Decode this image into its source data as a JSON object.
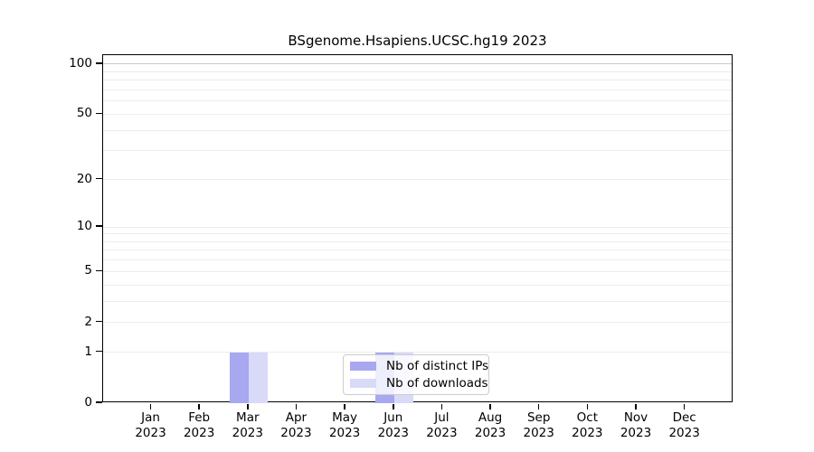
{
  "chart_data": {
    "type": "bar",
    "title": "BSgenome.Hsapiens.UCSC.hg19 2023",
    "categories": [
      "Jan",
      "Feb",
      "Mar",
      "Apr",
      "May",
      "Jun",
      "Jul",
      "Aug",
      "Sep",
      "Oct",
      "Nov",
      "Dec"
    ],
    "year_label": "2023",
    "series": [
      {
        "name": "Nb of distinct IPs",
        "color": "#a8a8f0",
        "values": [
          0,
          0,
          1,
          0,
          0,
          1,
          0,
          0,
          0,
          0,
          0,
          0
        ]
      },
      {
        "name": "Nb of downloads",
        "color": "#d9d9f8",
        "values": [
          0,
          0,
          1,
          0,
          0,
          1,
          0,
          0,
          0,
          0,
          0,
          0
        ]
      }
    ],
    "yscale": "log1p",
    "ylim": [
      0,
      113
    ],
    "y_ticks": [
      0,
      1,
      2,
      5,
      10,
      20,
      50,
      100
    ],
    "y_gridlines": [
      1,
      2,
      3,
      4,
      5,
      6,
      7,
      8,
      9,
      10,
      20,
      30,
      40,
      50,
      60,
      70,
      80,
      90,
      100
    ],
    "gridline_color_minor": "#ececec",
    "gridline_color_major": "#c9c9c9",
    "major_gridline_value": 100,
    "legend_position": "bottom-center",
    "grid": true
  }
}
